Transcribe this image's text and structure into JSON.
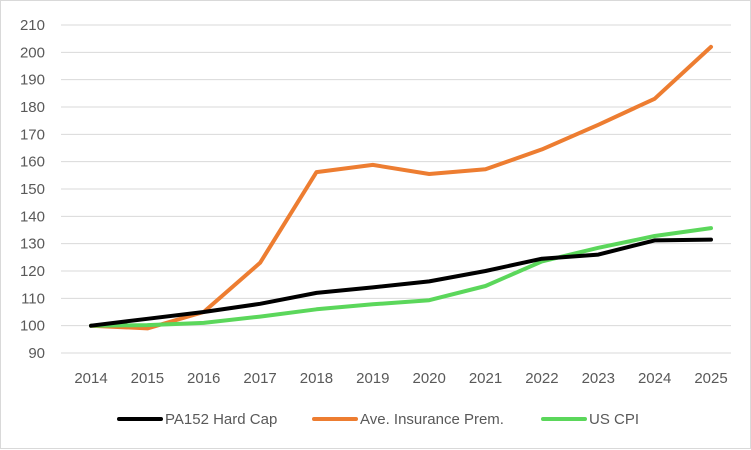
{
  "chart_data": {
    "type": "line",
    "title": "",
    "xlabel": "",
    "ylabel": "",
    "x": [
      "2014",
      "2015",
      "2016",
      "2017",
      "2018",
      "2019",
      "2020",
      "2021",
      "2022",
      "2023",
      "2024",
      "2025"
    ],
    "ylim": [
      90,
      210
    ],
    "yticks": [
      90,
      100,
      110,
      120,
      130,
      140,
      150,
      160,
      170,
      180,
      190,
      200,
      210
    ],
    "grid": "horizontal",
    "legend": "bottom",
    "series": [
      {
        "name": "PA152 Hard Cap",
        "color": "#000000",
        "values": [
          100,
          102.5,
          105,
          108,
          112,
          114,
          116.2,
          120,
          124.5,
          126,
          131.2,
          131.5
        ]
      },
      {
        "name": "Ave. Insurance Prem.",
        "color": "#ED7D31",
        "values": [
          100,
          99,
          105,
          123,
          156.2,
          158.8,
          155.5,
          157.2,
          164.5,
          173.5,
          183,
          202
        ]
      },
      {
        "name": "US CPI",
        "color": "#5BD75B",
        "values": [
          100,
          100.2,
          101,
          103.3,
          106,
          107.8,
          109.3,
          114.5,
          123.5,
          128.5,
          132.8,
          135.7
        ]
      }
    ]
  }
}
